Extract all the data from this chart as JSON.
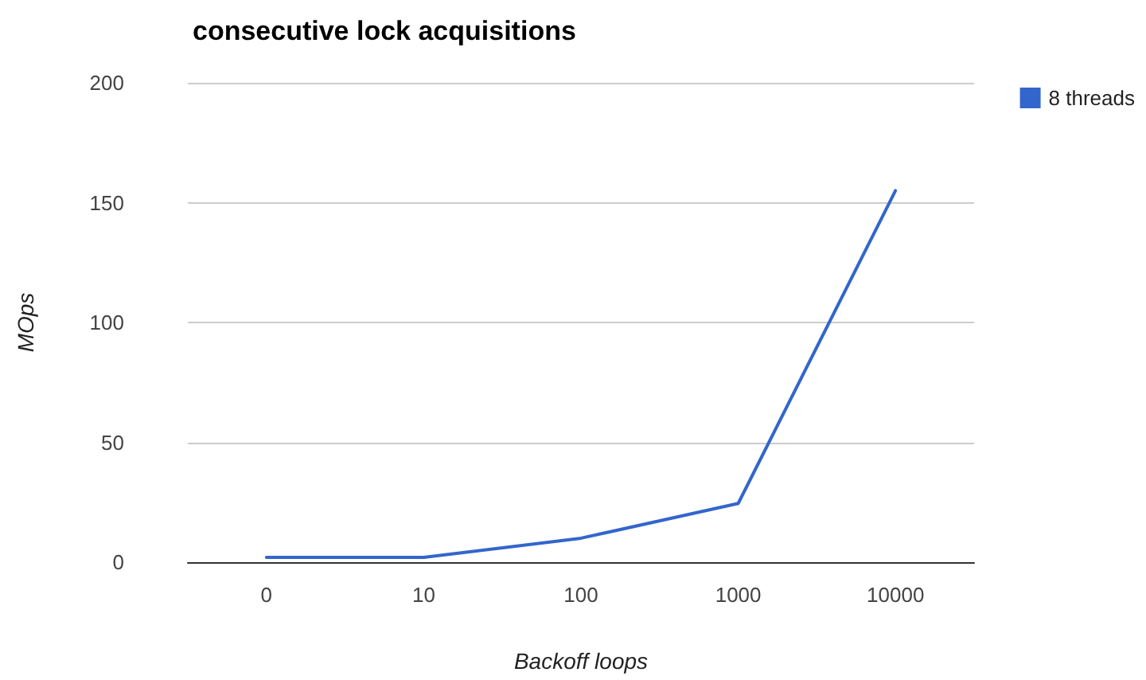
{
  "chart_data": {
    "type": "line",
    "title": "consecutive lock acquisitions",
    "xlabel": "Backoff loops",
    "ylabel": "MOps",
    "categories": [
      "0",
      "10",
      "100",
      "1000",
      "10000"
    ],
    "series": [
      {
        "name": "8 threads",
        "color": "#3366cc",
        "values": [
          2,
          2,
          10,
          24.5,
          155
        ]
      }
    ],
    "ylim": [
      0,
      200
    ],
    "yticks": [
      0,
      50,
      100,
      150,
      200
    ],
    "grid": "y",
    "legend": "top right",
    "marker": "none",
    "line_style": "solid"
  }
}
